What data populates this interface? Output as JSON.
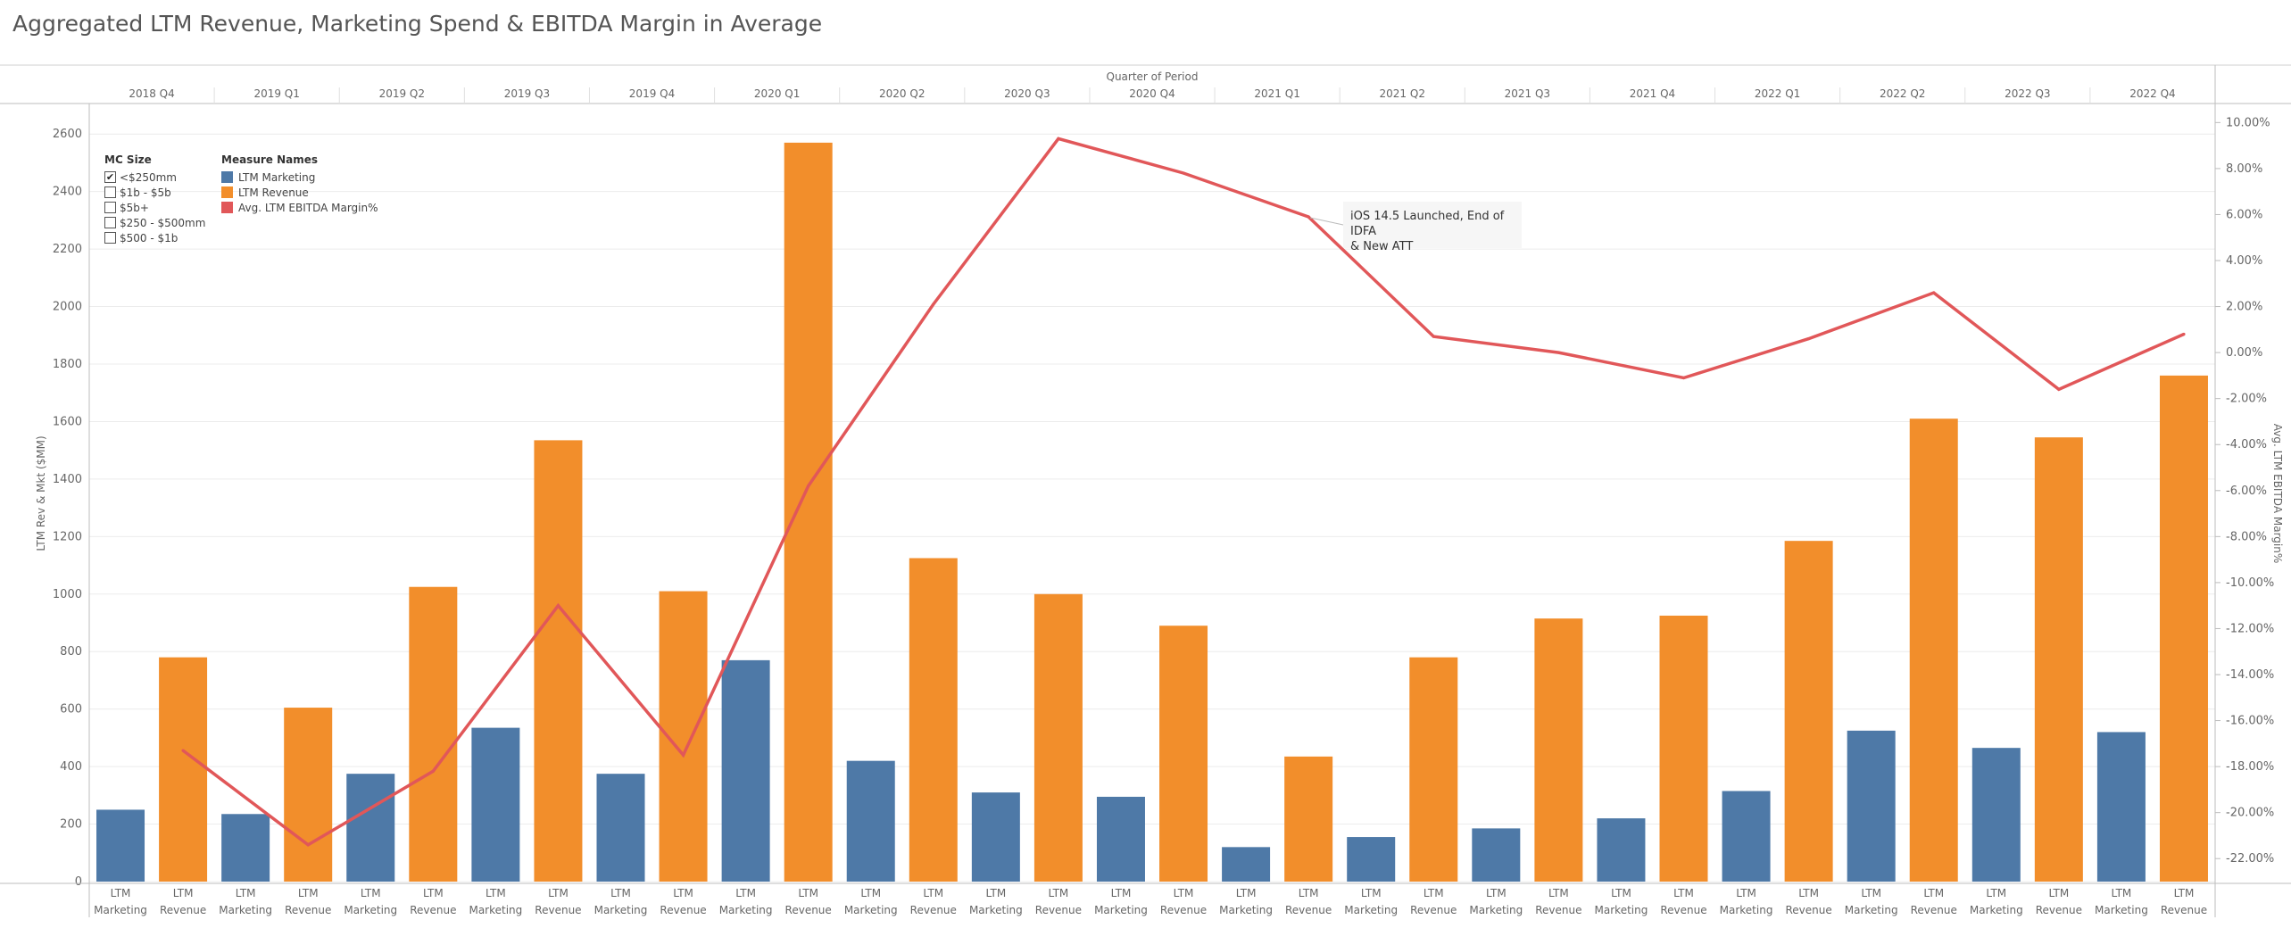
{
  "title": "Aggregated LTM Revenue, Marketing Spend & EBITDA Margin in Average",
  "colors": {
    "marketing": "#4e79a7",
    "revenue": "#f28e2b",
    "margin": "#e15759"
  },
  "legend": {
    "size_header": "MC Size",
    "size_items": [
      {
        "label": "<$250mm",
        "checked": true
      },
      {
        "label": "$1b - $5b",
        "checked": false
      },
      {
        "label": "$5b+",
        "checked": false
      },
      {
        "label": "$250 - $500mm",
        "checked": false
      },
      {
        "label": "$500 - $1b",
        "checked": false
      }
    ],
    "measure_header": "Measure Names",
    "measure_items": [
      {
        "label": "LTM Marketing",
        "color": "#4e79a7"
      },
      {
        "label": "LTM Revenue",
        "color": "#f28e2b"
      },
      {
        "label": "Avg. LTM EBITDA Margin%",
        "color": "#e15759"
      }
    ]
  },
  "annotation": {
    "line1": "iOS 14.5 Launched, End of IDFA",
    "line2": "& New ATT"
  },
  "chart_data": {
    "type": "bar",
    "title": "Aggregated LTM Revenue, Marketing Spend & EBITDA Margin in Average",
    "xlabel_top": "Quarter of Period",
    "ylabel": "LTM Rev & Mkt ($MM)",
    "y2label": "Avg. LTM EBITDA Margin%",
    "ylim": [
      0,
      2700
    ],
    "y2lim": [
      -23,
      10.75
    ],
    "yticks": [
      0,
      200,
      400,
      600,
      800,
      1000,
      1200,
      1400,
      1600,
      1800,
      2000,
      2200,
      2400,
      2600
    ],
    "y2ticks": [
      -22,
      -20,
      -18,
      -16,
      -14,
      -12,
      -10,
      -8,
      -6,
      -4,
      -2,
      0,
      2,
      4,
      6,
      8,
      10
    ],
    "categories": [
      "2018 Q4",
      "2019 Q1",
      "2019 Q2",
      "2019 Q3",
      "2019 Q4",
      "2020 Q1",
      "2020 Q2",
      "2020 Q3",
      "2020 Q4",
      "2021 Q1",
      "2021 Q2",
      "2021 Q3",
      "2021 Q4",
      "2022 Q1",
      "2022 Q2",
      "2022 Q3",
      "2022 Q4"
    ],
    "sub_labels": [
      [
        "LTM",
        "Marketing"
      ],
      [
        "LTM",
        "Revenue"
      ]
    ],
    "series": [
      {
        "name": "LTM Marketing",
        "axis": "left",
        "values": [
          250,
          235,
          375,
          535,
          375,
          770,
          420,
          310,
          295,
          120,
          155,
          185,
          220,
          315,
          525,
          465,
          520
        ]
      },
      {
        "name": "LTM Revenue",
        "axis": "left",
        "values": [
          780,
          605,
          1025,
          1535,
          1010,
          2570,
          1125,
          1000,
          890,
          435,
          780,
          915,
          925,
          1185,
          1610,
          1545,
          1760
        ]
      },
      {
        "name": "Avg. LTM EBITDA Margin%",
        "axis": "right",
        "type": "line",
        "values": [
          -17.3,
          -21.4,
          -18.2,
          -11.0,
          -17.5,
          -5.8,
          2.1,
          9.3,
          7.8,
          5.9,
          0.7,
          0.0,
          -1.1,
          0.6,
          2.6,
          -1.6,
          0.8
        ]
      }
    ],
    "grid": true,
    "legend_position": "top-left"
  }
}
